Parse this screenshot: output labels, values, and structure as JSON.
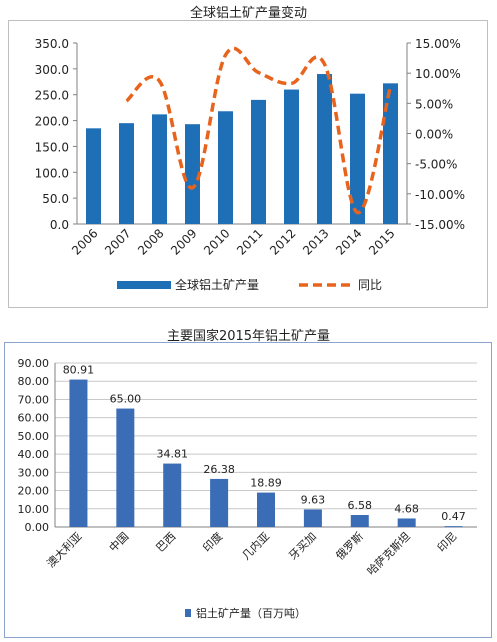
{
  "chart_data": [
    {
      "type": "bar",
      "title": "全球铝土矿产量变动",
      "categories": [
        "2006",
        "2007",
        "2008",
        "2009",
        "2010",
        "2011",
        "2012",
        "2013",
        "2014",
        "2015"
      ],
      "series": [
        {
          "name": "全球铝土矿产量",
          "axis": "left",
          "kind": "bar",
          "color": "#1f6fb7",
          "values": [
            185,
            195,
            212,
            193,
            218,
            240,
            260,
            290,
            252,
            272
          ]
        },
        {
          "name": "同比",
          "axis": "right",
          "kind": "line",
          "style": "dashed",
          "color": "#e8631c",
          "values": [
            null,
            5.4,
            8.7,
            -9.0,
            13.0,
            10.1,
            8.3,
            11.5,
            -13.1,
            7.9
          ]
        }
      ],
      "ylim": [
        0,
        350
      ],
      "yticks": [
        "350.0",
        "300.0",
        "250.0",
        "200.0",
        "150.0",
        "100.0",
        "50.0",
        "0.0"
      ],
      "y2lim": [
        -15,
        15
      ],
      "y2ticks": [
        "15.00%",
        "10.00%",
        "5.00%",
        "0.00%",
        "-5.00%",
        "-10.00%",
        "-15.00%"
      ],
      "legend": "bottom"
    },
    {
      "type": "bar",
      "title": "主要国家2015年铝土矿产量",
      "categories": [
        "澳大利亚",
        "中国",
        "巴西",
        "印度",
        "几内亚",
        "牙买加",
        "俄罗斯",
        "哈萨克斯坦",
        "印尼"
      ],
      "series": [
        {
          "name": "铝土矿产量（百万吨）",
          "color": "#3a6db5",
          "values": [
            80.91,
            65.0,
            34.81,
            26.38,
            18.89,
            9.63,
            6.58,
            4.68,
            0.47
          ],
          "labels": [
            "80.91",
            "65.00",
            "34.81",
            "26.38",
            "18.89",
            "9.63",
            "6.58",
            "4.68",
            "0.47"
          ]
        }
      ],
      "ylim": [
        0,
        90
      ],
      "yticks": [
        "90.00",
        "80.00",
        "70.00",
        "60.00",
        "50.00",
        "40.00",
        "30.00",
        "20.00",
        "10.00",
        "0.00"
      ],
      "legend": "bottom"
    }
  ]
}
